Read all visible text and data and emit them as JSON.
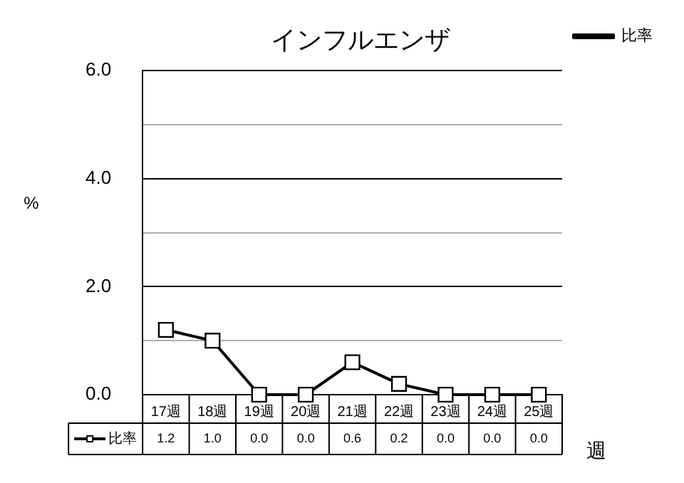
{
  "chart_data": {
    "type": "line",
    "title": "インフルエンザ",
    "ylabel": "%",
    "xlabel": "週",
    "categories": [
      "17週",
      "18週",
      "19週",
      "20週",
      "21週",
      "22週",
      "23週",
      "24週",
      "25週"
    ],
    "series": [
      {
        "name": "比率",
        "color": "#000000",
        "values": [
          1.2,
          1.0,
          0.0,
          0.0,
          0.6,
          0.2,
          0.0,
          0.0,
          0.0
        ],
        "value_labels": [
          "1.2",
          "1.0",
          "0.0",
          "0.0",
          "0.6",
          "0.2",
          "0.0",
          "0.0",
          "0.0"
        ]
      }
    ],
    "ylim": [
      0,
      6
    ],
    "yticks": [
      {
        "value": 0,
        "label": "0.0"
      },
      {
        "value": 1,
        "label": null
      },
      {
        "value": 2,
        "label": "2.0"
      },
      {
        "value": 3,
        "label": null
      },
      {
        "value": 4,
        "label": "4.0"
      },
      {
        "value": 5,
        "label": null
      },
      {
        "value": 6,
        "label": "6.0"
      }
    ],
    "grid": "y",
    "legend": "bottom left",
    "marker": "square",
    "line_style": "solid"
  }
}
